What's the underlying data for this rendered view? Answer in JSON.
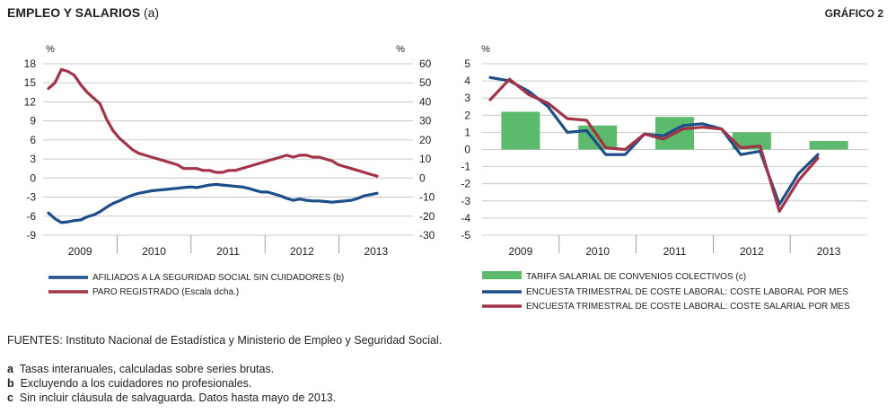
{
  "header": {
    "title_main": "EMPLEO Y SALARIOS",
    "title_suffix": "(a)",
    "figure_label": "GRÁFICO 2"
  },
  "colors": {
    "blue": "#1d4e89",
    "red": "#a33347",
    "green": "#5cba6c",
    "grid": "#bdbdbd"
  },
  "chart_data": [
    {
      "type": "line",
      "left_unit": "%",
      "right_unit": "%",
      "ylim": [
        -9,
        18
      ],
      "y2lim": [
        -30,
        60
      ],
      "y_ticks": [
        "18",
        "15",
        "12",
        "9",
        "6",
        "3",
        "0",
        "-3",
        "-6",
        "-9"
      ],
      "y2_ticks": [
        "60",
        "50",
        "40",
        "30",
        "20",
        "10",
        "0",
        "-10",
        "-20",
        "-30"
      ],
      "x_labels": [
        "2009",
        "2010",
        "2011",
        "2012",
        "2013"
      ],
      "series": [
        {
          "name": "AFILIADOS A LA SEGURIDAD SOCIAL SIN CUIDADORES (b)",
          "axis": "left",
          "values": [
            -5.5,
            -6.4,
            -7.0,
            -6.9,
            -6.7,
            -6.6,
            -6.1,
            -5.8,
            -5.3,
            -4.6,
            -4.0,
            -3.6,
            -3.1,
            -2.7,
            -2.4,
            -2.2,
            -2.0,
            -1.9,
            -1.8,
            -1.7,
            -1.6,
            -1.5,
            -1.4,
            -1.5,
            -1.3,
            -1.1,
            -1.0,
            -1.1,
            -1.2,
            -1.3,
            -1.4,
            -1.6,
            -1.9,
            -2.2,
            -2.2,
            -2.5,
            -2.8,
            -3.2,
            -3.5,
            -3.3,
            -3.5,
            -3.6,
            -3.6,
            -3.7,
            -3.8,
            -3.7,
            -3.6,
            -3.5,
            -3.2,
            -2.8,
            -2.6,
            -2.4
          ]
        },
        {
          "name": "PARO REGISTRADO (Escala dcha.)",
          "axis": "right",
          "values": [
            47,
            50,
            57,
            56,
            54,
            49,
            45,
            42,
            39,
            31,
            25,
            21,
            18,
            15,
            13,
            12,
            11,
            10,
            9,
            8,
            7,
            5,
            5,
            5,
            4,
            4,
            3,
            3,
            4,
            4,
            5,
            6,
            7,
            8,
            9,
            10,
            11,
            12,
            11,
            12,
            12,
            11,
            11,
            10,
            9,
            7,
            6,
            5,
            4,
            3,
            2,
            1
          ]
        }
      ]
    },
    {
      "type": "bar+line",
      "left_unit": "%",
      "ylim": [
        -5,
        5
      ],
      "y_ticks": [
        "5",
        "4",
        "3",
        "2",
        "1",
        "0",
        "-1",
        "-2",
        "-3",
        "-4",
        "-5"
      ],
      "x_labels": [
        "2009",
        "2010",
        "2011",
        "2012",
        "2013"
      ],
      "bars": {
        "name": "TARIFA SALARIAL DE CONVENIOS COLECTIVOS (c)",
        "values": [
          2.2,
          1.4,
          1.9,
          1.0,
          0.5
        ]
      },
      "series": [
        {
          "name": "ENCUESTA TRIMESTRAL DE COSTE LABORAL: COSTE LABORAL POR MES",
          "values": [
            4.2,
            4.0,
            3.4,
            2.5,
            1.0,
            1.1,
            -0.3,
            -0.3,
            0.9,
            0.8,
            1.4,
            1.5,
            1.2,
            -0.3,
            -0.1,
            -3.2,
            -1.4,
            -0.3
          ]
        },
        {
          "name": "ENCUESTA TRIMESTRAL DE COSTE LABORAL: COSTE SALARIAL POR MES",
          "values": [
            2.9,
            4.1,
            3.2,
            2.7,
            1.8,
            1.7,
            0.1,
            0.0,
            0.9,
            0.6,
            1.2,
            1.3,
            1.2,
            0.1,
            0.2,
            -3.6,
            -1.8,
            -0.5
          ]
        }
      ]
    }
  ],
  "notes": {
    "sources": "FUENTES: Instituto Nacional de Estadística y Ministerio de Empleo y Seguridad Social.",
    "footnotes": [
      {
        "key": "a",
        "text": "Tasas interanuales, calculadas sobre series brutas."
      },
      {
        "key": "b",
        "text": "Excluyendo a los cuidadores no profesionales."
      },
      {
        "key": "c",
        "text": "Sin incluir cláusula de salvaguarda. Datos hasta mayo de 2013."
      }
    ]
  }
}
